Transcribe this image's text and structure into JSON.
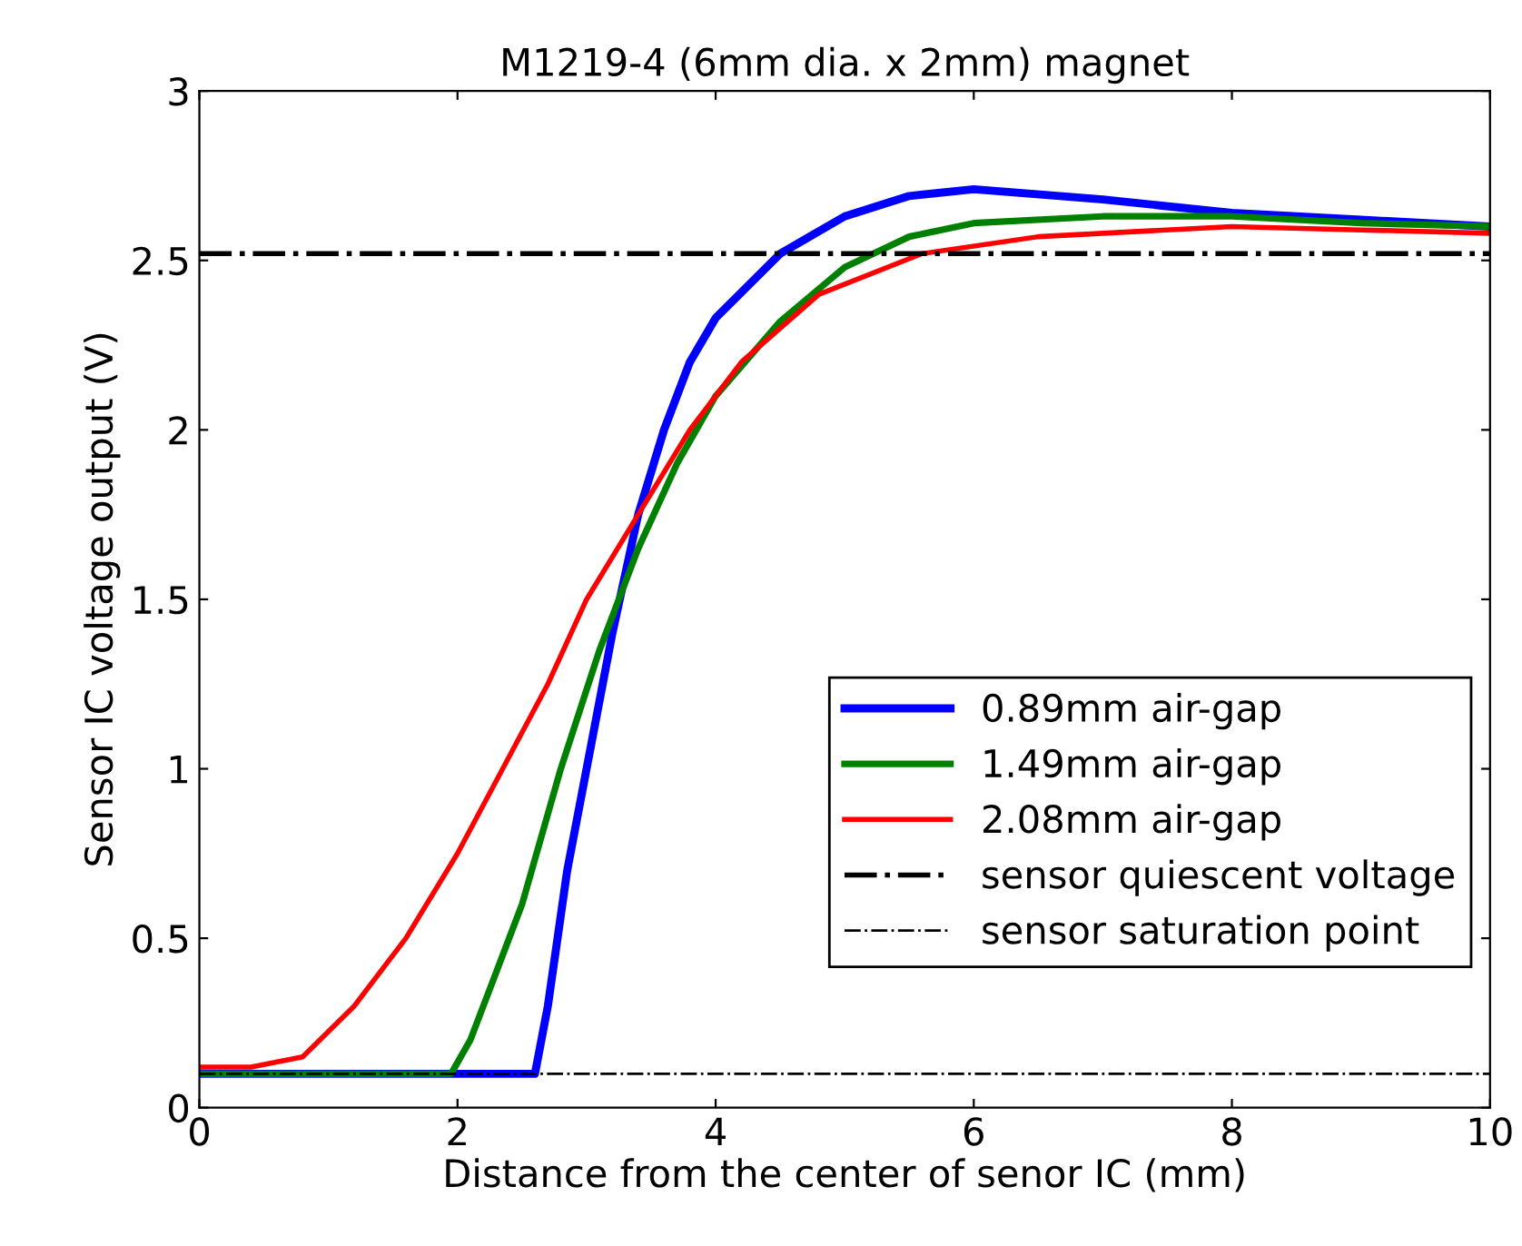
{
  "chart_data": {
    "type": "line",
    "title": "M1219-4 (6mm dia. x 2mm) magnet",
    "xlabel": "Distance from the center of senor IC (mm)",
    "ylabel": "Sensor IC voltage output (V)",
    "xlim": [
      0,
      10
    ],
    "ylim": [
      0,
      3
    ],
    "xticks": [
      0,
      2,
      4,
      6,
      8,
      10
    ],
    "yticks": [
      0,
      0.5,
      1,
      1.5,
      2,
      2.5,
      3
    ],
    "grid": false,
    "legend": "bottom right",
    "line_style": "solid",
    "marker": "none",
    "series": [
      {
        "name": "0.89mm air-gap",
        "color": "#0000ff",
        "x": [
          0,
          2.6,
          2.7,
          2.85,
          3.0,
          3.2,
          3.4,
          3.6,
          3.8,
          4.0,
          4.5,
          5.0,
          5.5,
          6.0,
          7,
          8,
          9,
          10
        ],
        "values": [
          0.1,
          0.1,
          0.3,
          0.7,
          1.0,
          1.4,
          1.75,
          2.0,
          2.2,
          2.33,
          2.52,
          2.63,
          2.69,
          2.71,
          2.68,
          2.64,
          2.62,
          2.6
        ]
      },
      {
        "name": "1.49mm air-gap",
        "color": "#008000",
        "x": [
          0,
          1.95,
          2.1,
          2.3,
          2.5,
          2.8,
          3.1,
          3.4,
          3.7,
          4.0,
          4.5,
          5.0,
          5.5,
          6,
          7,
          8,
          9,
          10
        ],
        "values": [
          0.1,
          0.1,
          0.2,
          0.4,
          0.6,
          1.0,
          1.35,
          1.65,
          1.9,
          2.1,
          2.32,
          2.48,
          2.57,
          2.61,
          2.63,
          2.63,
          2.61,
          2.6
        ]
      },
      {
        "name": "2.08mm air-gap",
        "color": "#ff0000",
        "x": [
          0,
          0.4,
          0.8,
          1.2,
          1.6,
          2.0,
          2.35,
          2.7,
          3.0,
          3.4,
          3.8,
          4.2,
          4.8,
          5.6,
          6.5,
          7,
          8,
          9,
          10
        ],
        "values": [
          0.12,
          0.12,
          0.15,
          0.3,
          0.5,
          0.75,
          1.0,
          1.25,
          1.5,
          1.75,
          2.0,
          2.2,
          2.4,
          2.52,
          2.57,
          2.58,
          2.6,
          2.59,
          2.58
        ]
      }
    ],
    "ref_lines": [
      {
        "axis": "y",
        "value": 2.52,
        "label": "sensor quiescent voltage",
        "color": "#000000",
        "line_style": "dashdot"
      },
      {
        "axis": "y",
        "value": 0.1,
        "label": "sensor saturation point",
        "color": "#000000",
        "line_style": "dashdot"
      }
    ]
  }
}
